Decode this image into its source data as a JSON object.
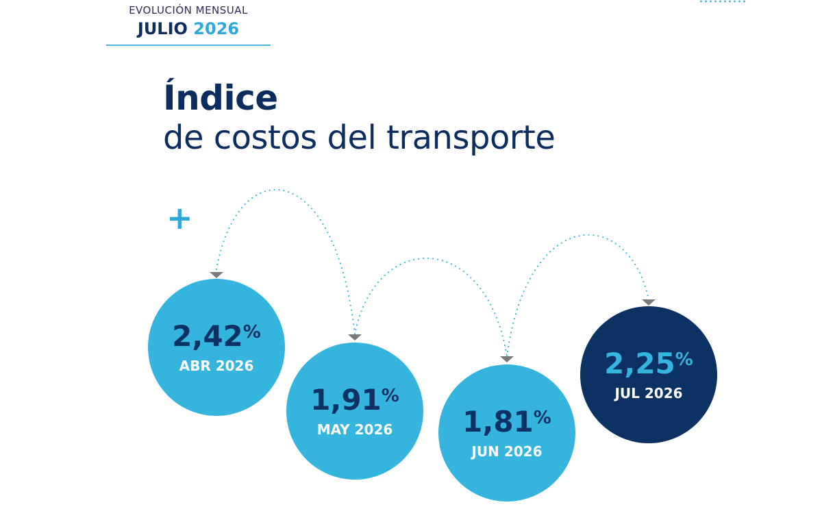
{
  "header": {
    "subtitle": "EVOLUCIÓN MENSUAL",
    "month": "JULIO",
    "year": "2026"
  },
  "title": {
    "line1": "Índice",
    "line2": "de costos del transporte"
  },
  "decor": {
    "plus": "+"
  },
  "colors": {
    "light_blue": "#35b4de",
    "dark_blue": "#0b3263",
    "accent_text": "#2fa8d8",
    "arrow": "#7a7a7a"
  },
  "chart_data": {
    "type": "bubble-sequence",
    "categories": [
      "ABR 2026",
      "MAY 2026",
      "JUN 2026",
      "JUL 2026"
    ],
    "values": [
      2.42,
      1.91,
      1.81,
      2.25
    ],
    "value_labels": [
      "2,42",
      "1,91",
      "1,81",
      "2,25"
    ],
    "unit": "%",
    "highlight_index": 3
  }
}
